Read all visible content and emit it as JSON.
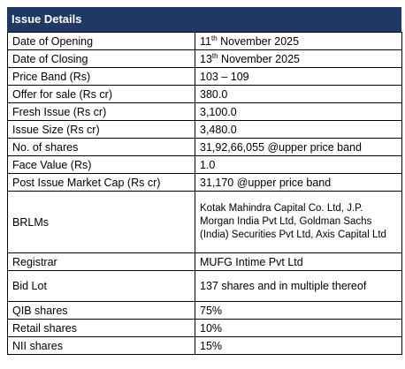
{
  "title": "Issue Details",
  "rows": [
    {
      "label": "Date of Opening",
      "day": "11",
      "suffix": "th",
      "rest": " November 2025"
    },
    {
      "label": "Date of Closing",
      "day": "13",
      "suffix": "th",
      "rest": " November 2025"
    },
    {
      "label": "Price Band (Rs)",
      "value": "103 – 109"
    },
    {
      "label": "Offer for sale (Rs cr)",
      "value": "380.0"
    },
    {
      "label": "Fresh Issue (Rs cr)",
      "value": "3,100.0"
    },
    {
      "label": "Issue Size (Rs cr)",
      "value": "3,480.0"
    },
    {
      "label": "No. of shares",
      "value": "31,92,66,055 @upper price band"
    },
    {
      "label": "Face Value (Rs)",
      "value": "1.0"
    },
    {
      "label": "Post Issue Market Cap (Rs cr)",
      "value": "31,170 @upper price band"
    },
    {
      "label": "BRLMs",
      "value": "Kotak Mahindra Capital Co. Ltd, J.P. Morgan India Pvt Ltd, Goldman Sachs (India) Securities Pvt Ltd, Axis Capital Ltd"
    },
    {
      "label": "Registrar",
      "value": "MUFG Intime Pvt Ltd"
    },
    {
      "label": "Bid Lot",
      "value": "137 shares and in multiple thereof"
    },
    {
      "label": "QIB shares",
      "value": "75%"
    },
    {
      "label": "Retail shares",
      "value": "10%"
    },
    {
      "label": "NII shares",
      "value": "15%"
    }
  ]
}
